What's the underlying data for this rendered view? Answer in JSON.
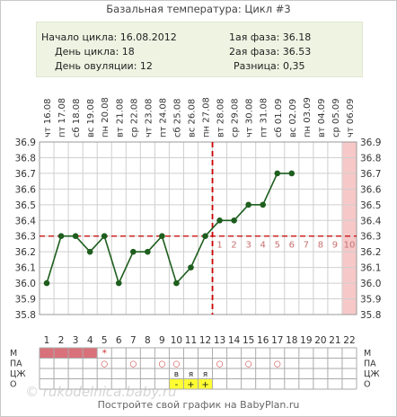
{
  "title": "Базальная температура: Цикл #3",
  "info": {
    "cycle_start": "Начало цикла: 16.08.2012",
    "cycle_day": "День цикла: 18",
    "ovulation_day": "День овуляции: 12",
    "phase1": "1ая фаза: 36.18",
    "phase2": "2ая фаза: 36.53",
    "difference": "Разница: 0,35"
  },
  "footer": "Постройте свой график на BabyPlan.ru",
  "watermark": "© rukodelnica.baby.ru",
  "colors": {
    "line": "#1e5e1e",
    "point": "#1e5e1e",
    "coverline": "#cc0000",
    "ovulation": "#cc0000",
    "grid": "#cfcfcf",
    "highlight_col": "#f6c8c8",
    "menses": "#d9717a",
    "yellow": "#ffff33"
  },
  "chart_data": {
    "type": "line",
    "dates": [
      "16.08",
      "17.08",
      "18.08",
      "19.08",
      "20.08",
      "21.08",
      "22.08",
      "23.08",
      "24.08",
      "25.08",
      "26.08",
      "27.08",
      "28.08",
      "29.08",
      "30.08",
      "31.08",
      "01.09",
      "02.09",
      "03.09",
      "04.09",
      "05.09",
      "06.09"
    ],
    "weekdays": [
      "чт",
      "пт",
      "сб",
      "вс",
      "пн",
      "вт",
      "ср",
      "чт",
      "пт",
      "сб",
      "вс",
      "пн",
      "вт",
      "ср",
      "чт",
      "пт",
      "сб",
      "вс",
      "пн",
      "вт",
      "ср",
      "чт"
    ],
    "x": [
      1,
      2,
      3,
      4,
      5,
      6,
      7,
      8,
      9,
      10,
      11,
      12,
      13,
      14,
      15,
      16,
      17,
      18,
      19,
      20,
      21,
      22
    ],
    "series": [
      {
        "values": [
          36.0,
          36.3,
          36.3,
          36.2,
          36.3,
          36.0,
          36.2,
          36.2,
          36.3,
          36.0,
          36.1,
          36.3,
          36.4,
          36.4,
          36.5,
          36.5,
          36.7,
          36.7,
          null,
          null,
          null,
          null
        ]
      }
    ],
    "y_ticks": [
      "35.8",
      "35.9",
      "36.0",
      "36.1",
      "36.2",
      "36.3",
      "36.4",
      "36.5",
      "36.6",
      "36.7",
      "36.8",
      "36.9"
    ],
    "ylim": [
      35.8,
      36.9
    ],
    "coverline": 36.3,
    "ovulation_x": 12,
    "highlight_day": 22,
    "luteal_numbers": [
      "1",
      "2",
      "3",
      "4",
      "5",
      "6",
      "7",
      "8",
      "9",
      "10"
    ],
    "grid": true,
    "rows": {
      "labels": [
        "М",
        "ПА",
        "ЦЖ",
        "О"
      ],
      "menses_days": [
        1,
        2,
        3,
        4
      ],
      "m_star": {
        "day": 5,
        "symbol": "*"
      },
      "pa_circles": [
        5,
        7,
        9,
        10,
        13,
        15,
        17
      ],
      "pa_circle_symbol": "○",
      "cm_marks": [
        {
          "day": 10,
          "text": "в"
        },
        {
          "day": 11,
          "text": "я"
        },
        {
          "day": 12,
          "text": "я"
        }
      ],
      "o_marks": [
        {
          "day": 10,
          "text": "-"
        },
        {
          "day": 11,
          "text": "+"
        },
        {
          "day": 12,
          "text": "+"
        }
      ]
    }
  }
}
